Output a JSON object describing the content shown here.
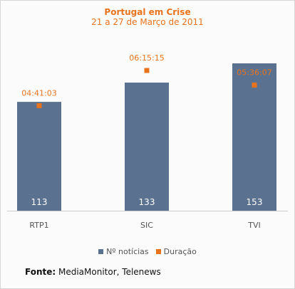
{
  "chart_data": {
    "type": "bar",
    "title": "Portugal em Crise",
    "subtitle": "21 a 27 de Março de 2011",
    "categories": [
      "RTP1",
      "SIC",
      "TVI"
    ],
    "series": [
      {
        "name": "Nº notícias",
        "values": [
          113,
          133,
          153
        ],
        "color": "#5a7290"
      },
      {
        "name": "Duração",
        "values": [
          "04:41:03",
          "06:15:15",
          "05:36:07"
        ],
        "color": "#e8731c"
      }
    ],
    "ylim": [
      0,
      170
    ],
    "legend_position": "bottom",
    "grid": false
  },
  "source": {
    "label": "Fonte:",
    "text": " MediaMonitor, Telenews"
  }
}
